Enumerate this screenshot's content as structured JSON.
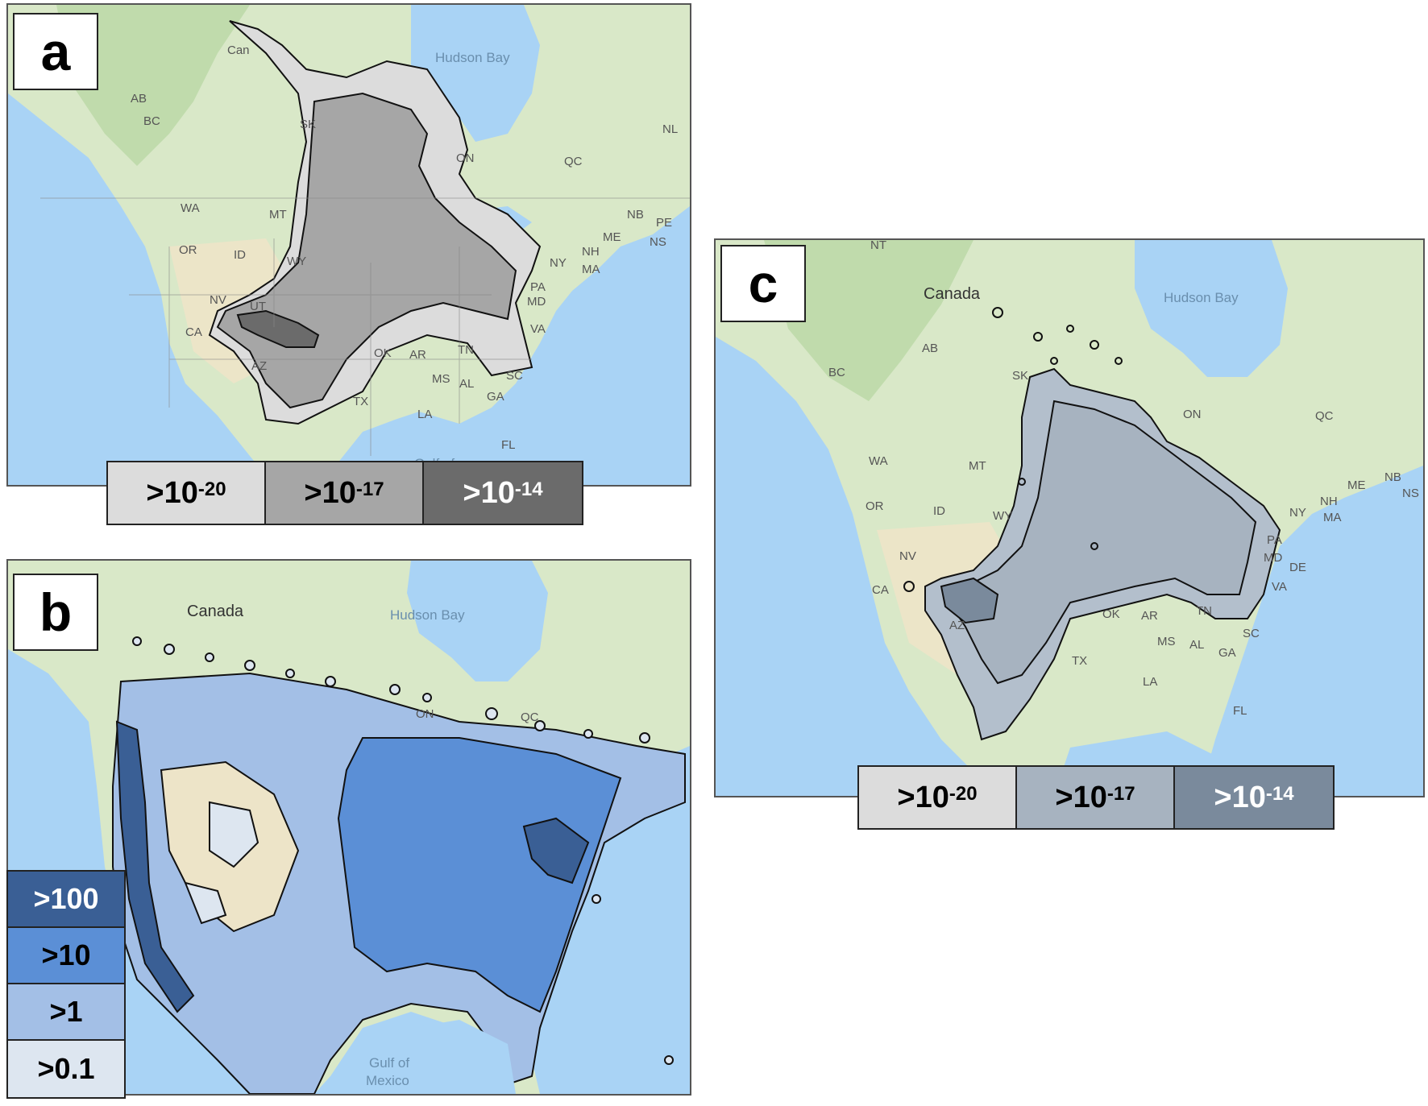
{
  "panels": {
    "a": {
      "letter": "a",
      "labels": {
        "hudson_bay": "Hudson Bay",
        "canada": "Can",
        "gulf": "Gulf of",
        "ab": "AB",
        "bc": "BC",
        "sk": "SK",
        "on": "ON",
        "qc": "QC",
        "nl": "NL",
        "wa": "WA",
        "mt": "MT",
        "or": "OR",
        "id": "ID",
        "wy": "WY",
        "nv": "NV",
        "ut": "UT",
        "ca": "CA",
        "az": "AZ",
        "tx": "TX",
        "ok": "OK",
        "ar": "AR",
        "ms": "MS",
        "al": "AL",
        "ga": "GA",
        "la": "LA",
        "fl": "FL",
        "tn": "TN",
        "sc": "SC",
        "va": "VA",
        "md": "MD",
        "pa": "PA",
        "ny": "NY",
        "nh": "NH",
        "me": "ME",
        "ma": "MA",
        "nb": "NB",
        "pe": "PE",
        "ns": "NS"
      },
      "legend": [
        {
          "base": ">10",
          "exp": "-20",
          "color": "#dcdcdc",
          "text_color": "#000000"
        },
        {
          "base": ">10",
          "exp": "-17",
          "color": "#a6a6a6",
          "text_color": "#000000"
        },
        {
          "base": ">10",
          "exp": "-14",
          "color": "#6b6b6b",
          "text_color": "#ffffff"
        }
      ]
    },
    "b": {
      "letter": "b",
      "labels": {
        "hudson_bay": "Hudson Bay",
        "canada": "Canada",
        "on": "ON",
        "qc": "QC",
        "gulf_line1": "Gulf of",
        "gulf_line2": "Mexico"
      },
      "legend": [
        {
          "label": ">100",
          "color": "#3a5f95",
          "text_color": "#ffffff"
        },
        {
          "label": ">10",
          "color": "#5b8fd6",
          "text_color": "#000000"
        },
        {
          "label": ">1",
          "color": "#a3bfe6",
          "text_color": "#000000"
        },
        {
          "label": ">0.1",
          "color": "#dde6f0",
          "text_color": "#000000"
        }
      ]
    },
    "c": {
      "letter": "c",
      "labels": {
        "hudson_bay": "Hudson Bay",
        "canada": "Canada",
        "nt": "NT",
        "ab": "AB",
        "bc": "BC",
        "sk": "SK",
        "on": "ON",
        "qc": "QC",
        "wa": "WA",
        "mt": "MT",
        "or": "OR",
        "id": "ID",
        "wy": "WY",
        "nv": "NV",
        "ca": "CA",
        "az": "AZ",
        "ok": "OK",
        "ar": "AR",
        "tn": "TN",
        "ms": "MS",
        "al": "AL",
        "ga": "GA",
        "la": "LA",
        "tx": "TX",
        "fl": "FL",
        "sc": "SC",
        "va": "VA",
        "md": "MD",
        "de": "DE",
        "pa": "PA",
        "ny": "NY",
        "nh": "NH",
        "ma": "MA",
        "me": "ME",
        "nb": "NB",
        "ns": "NS"
      },
      "legend": [
        {
          "base": ">10",
          "exp": "-20",
          "color": "#dcdcdc",
          "text_color": "#000000"
        },
        {
          "base": ">10",
          "exp": "-17",
          "color": "#a7b3c0",
          "text_color": "#000000"
        },
        {
          "base": ">10",
          "exp": "-14",
          "color": "#7a8a9c",
          "text_color": "#ffffff"
        }
      ]
    }
  }
}
